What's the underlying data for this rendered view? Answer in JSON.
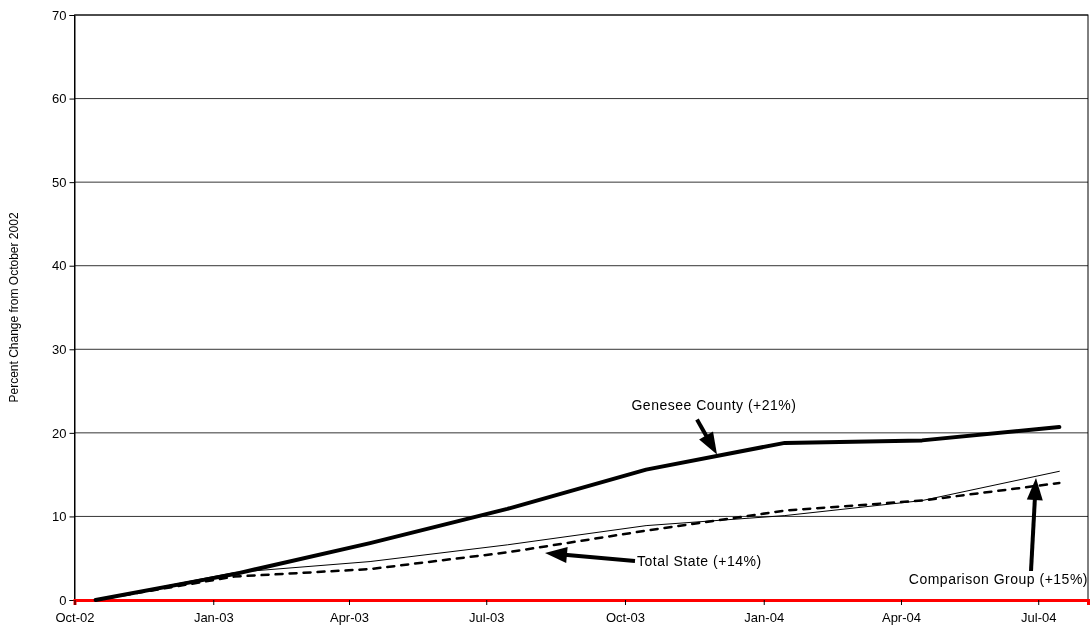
{
  "chart_data": {
    "type": "line",
    "ylabel": "Percent Change from October 2002",
    "x": [
      "2002-10-15",
      "2003-01-15",
      "2003-04-15",
      "2003-07-15",
      "2003-10-15",
      "2004-01-15",
      "2004-04-15",
      "2004-07-15"
    ],
    "series": [
      {
        "color": "#000000",
        "line_style": "solid",
        "values": [
          0,
          3.1,
          6.8,
          10.9,
          15.6,
          18.8,
          19.1,
          20.7
        ]
      },
      {
        "color": "#000000",
        "line_style": "solid",
        "values": [
          0,
          3.3,
          4.6,
          6.6,
          8.9,
          10.1,
          11.9,
          15.4
        ]
      },
      {
        "color": "#000000",
        "line_style": "dashed",
        "values": [
          0,
          2.8,
          3.7,
          5.7,
          8.3,
          10.7,
          11.9,
          14.0
        ]
      }
    ],
    "xlim": [
      "2002-10-01",
      "2004-08-03"
    ],
    "xticks": [
      {
        "value": "2002-10-01",
        "label": "Oct-02"
      },
      {
        "value": "2003-01-01",
        "label": "Jan-03"
      },
      {
        "value": "2003-04-01",
        "label": "Apr-03"
      },
      {
        "value": "2003-07-01",
        "label": "Jul-03"
      },
      {
        "value": "2003-10-01",
        "label": "Oct-03"
      },
      {
        "value": "2004-01-01",
        "label": "Jan-04"
      },
      {
        "value": "2004-04-01",
        "label": "Apr-04"
      },
      {
        "value": "2004-07-01",
        "label": "Jul-04"
      }
    ],
    "ylim": [
      0,
      70
    ],
    "yticks": [
      0,
      10,
      20,
      30,
      40,
      50,
      60,
      70
    ],
    "grid": "y",
    "marker": "none",
    "annotations": [
      {
        "text": "Genesee County (+21%)",
        "x": "2003-12-01",
        "y": 17.4
      },
      "Total State (+14%)",
      "Comparison Group (+15%)"
    ]
  }
}
